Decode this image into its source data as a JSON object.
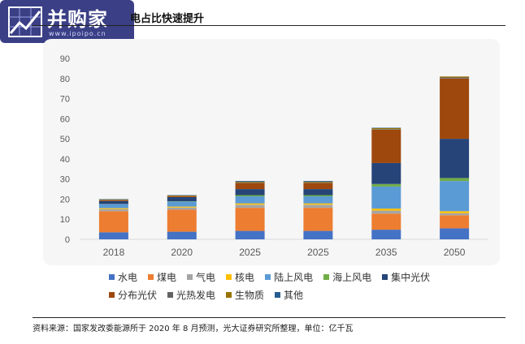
{
  "header": {
    "title_fragment": "电占比快速提升",
    "logo_name": "并购家",
    "logo_url": "www.ipoipo.cn"
  },
  "chart_data": {
    "type": "bar",
    "stacked": true,
    "categories": [
      "2018",
      "2020",
      "2025",
      "2025",
      "2035",
      "2050"
    ],
    "y_ticks": [
      0,
      10,
      20,
      30,
      40,
      50,
      60,
      70,
      80,
      90
    ],
    "ylim": [
      0,
      90
    ],
    "grid": false,
    "legend_position": "bottom",
    "series": [
      {
        "name": "水电",
        "color": "#4472c4",
        "values": [
          3.5,
          3.8,
          4.2,
          4.2,
          4.8,
          5.5
        ]
      },
      {
        "name": "煤电",
        "color": "#ed7d31",
        "values": [
          10.5,
          11,
          11.5,
          11.5,
          8,
          6.5
        ]
      },
      {
        "name": "气电",
        "color": "#a5a5a5",
        "values": [
          1,
          1,
          1.5,
          1.5,
          1.5,
          1
        ]
      },
      {
        "name": "核电",
        "color": "#ffc000",
        "values": [
          0.5,
          0.5,
          0.7,
          0.7,
          1,
          1
        ]
      },
      {
        "name": "陆上风电",
        "color": "#5b9bd5",
        "values": [
          2,
          2.5,
          3.5,
          3.5,
          11,
          15
        ]
      },
      {
        "name": "海上风电",
        "color": "#70ad47",
        "values": [
          0.1,
          0.2,
          0.6,
          0.6,
          1.2,
          1.5
        ]
      },
      {
        "name": "集中光伏",
        "color": "#264478",
        "values": [
          1.5,
          2,
          3,
          3,
          10.5,
          19.5
        ]
      },
      {
        "name": "分布光伏",
        "color": "#9e480e",
        "values": [
          0.4,
          0.5,
          3,
          3,
          16.5,
          30
        ]
      },
      {
        "name": "光热发电",
        "color": "#636363",
        "values": [
          0,
          0,
          0.2,
          0.2,
          0.3,
          0.5
        ]
      },
      {
        "name": "生物质",
        "color": "#997300",
        "values": [
          0.3,
          0.3,
          0.4,
          0.4,
          0.5,
          0.5
        ]
      },
      {
        "name": "其他",
        "color": "#255e91",
        "values": [
          0.2,
          0.2,
          0.4,
          0.4,
          0.2,
          0
        ]
      }
    ]
  },
  "source": "资料来源：国家发改委能源所于 2020 年 8 月预测，光大证券研究所整理，单位：亿千瓦"
}
